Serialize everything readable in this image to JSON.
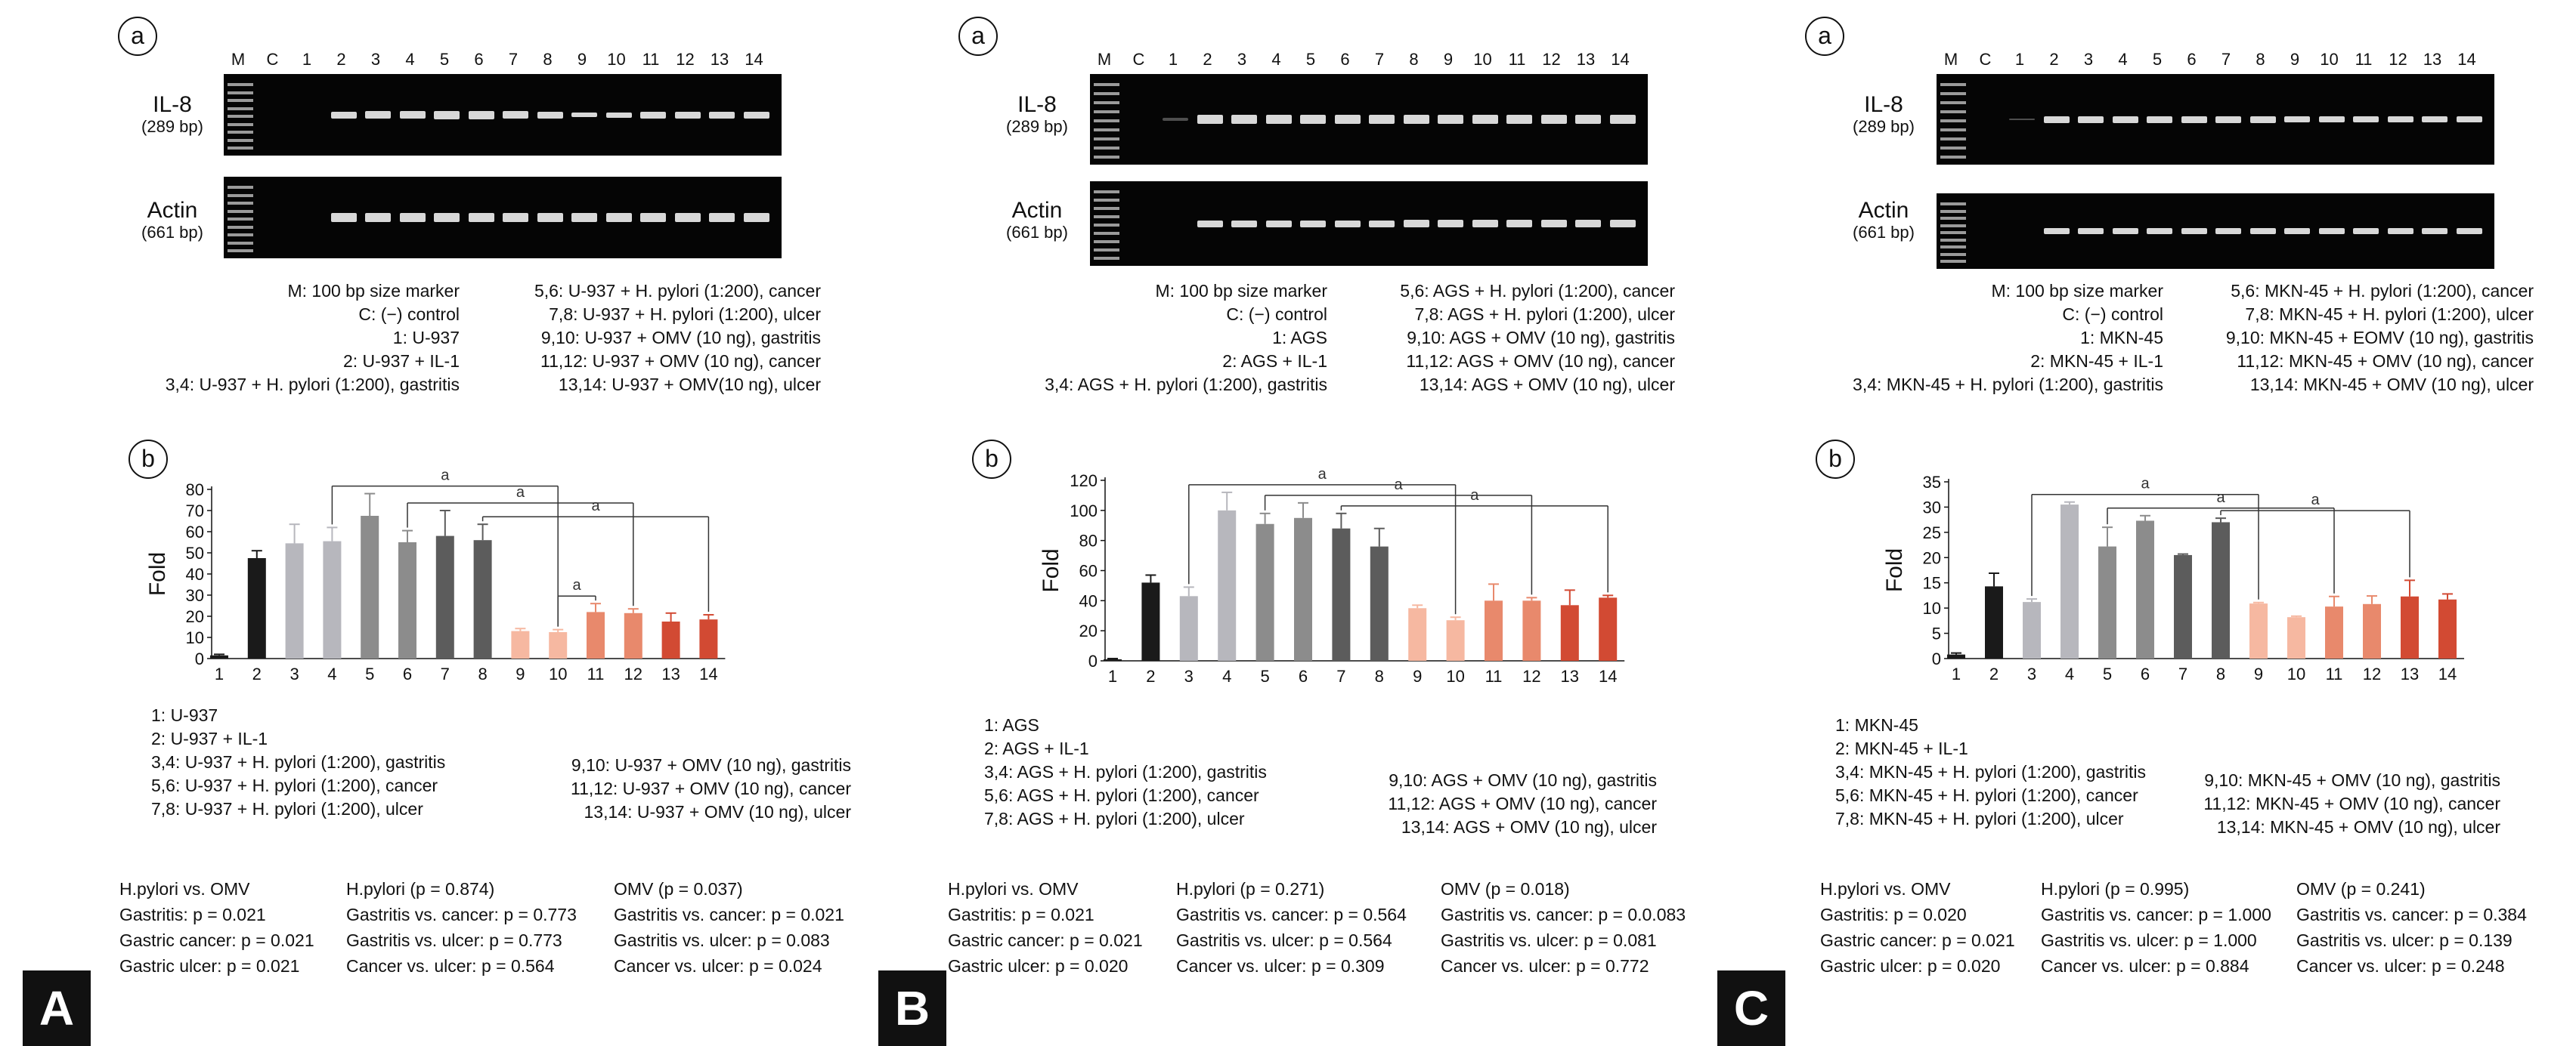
{
  "panels": [
    {
      "letter": "A",
      "gel": {
        "circle_label": "a",
        "lane_labels": [
          "M",
          "C",
          "1",
          "2",
          "3",
          "4",
          "5",
          "6",
          "7",
          "8",
          "9",
          "10",
          "11",
          "12",
          "13",
          "14"
        ],
        "il8_label": "IL-8",
        "il8_bp": "(289 bp)",
        "actin_label": "Actin",
        "actin_bp": "(661 bp)",
        "legend_left": [
          "M: 100 bp size marker",
          "C: (−) control",
          "1: U-937",
          "2: U-937 + IL-1",
          "3,4: U-937 + H. pylori (1:200), gastritis"
        ],
        "legend_right": [
          "5,6: U-937 + H. pylori (1:200), cancer",
          "7,8: U-937 + H. pylori (1:200), ulcer",
          "9,10: U-937 + OMV (10 ng), gastritis",
          "11,12: U-937 + OMV (10 ng), cancer",
          "13,14: U-937 + OMV(10 ng), ulcer"
        ]
      },
      "bar_legend_left": [
        "1: U-937",
        "2: U-937 + IL-1",
        "3,4: U-937 + H. pylori (1:200), gastritis",
        "5,6: U-937 + H. pylori (1:200), cancer",
        "7,8: U-937 + H. pylori (1:200), ulcer"
      ],
      "bar_legend_right": [
        "9,10: U-937 + OMV (10 ng), gastritis",
        "11,12: U-937 + OMV (10 ng), cancer",
        "13,14: U-937 + OMV (10 ng), ulcer"
      ],
      "stats": {
        "col1": [
          "H.pylori vs. OMV",
          "Gastritis: p = 0.021",
          "Gastric cancer: p = 0.021",
          "Gastric ulcer: p = 0.021"
        ],
        "col2": [
          "H.pylori (p = 0.874)",
          "Gastritis vs. cancer: p = 0.773",
          "Gastritis vs. ulcer: p = 0.773",
          "Cancer vs. ulcer: p = 0.564"
        ],
        "col3": [
          "OMV (p = 0.037)",
          "Gastritis vs. cancer: p = 0.021",
          "Gastritis vs. ulcer: p = 0.083",
          "Cancer vs. ulcer: p = 0.024"
        ]
      }
    },
    {
      "letter": "B",
      "gel": {
        "circle_label": "a",
        "lane_labels": [
          "M",
          "C",
          "1",
          "2",
          "3",
          "4",
          "5",
          "6",
          "7",
          "8",
          "9",
          "10",
          "11",
          "12",
          "13",
          "14"
        ],
        "il8_label": "IL-8",
        "il8_bp": "(289 bp)",
        "actin_label": "Actin",
        "actin_bp": "(661 bp)",
        "legend_left": [
          "M: 100 bp size marker",
          "C: (−) control",
          "1: AGS",
          "2: AGS + IL-1",
          "3,4: AGS + H. pylori (1:200), gastritis"
        ],
        "legend_right": [
          "5,6: AGS + H. pylori (1:200), cancer",
          "7,8: AGS + H. pylori (1:200), ulcer",
          "9,10: AGS + OMV (10 ng), gastritis",
          "11,12: AGS + OMV (10 ng), cancer",
          "13,14: AGS + OMV (10 ng), ulcer"
        ]
      },
      "bar_legend_left": [
        "1: AGS",
        "2: AGS + IL-1",
        "3,4: AGS + H. pylori (1:200), gastritis",
        "5,6: AGS + H. pylori (1:200), cancer",
        "7,8: AGS + H. pylori (1:200), ulcer"
      ],
      "bar_legend_right": [
        "9,10: AGS + OMV (10 ng), gastritis",
        "11,12: AGS + OMV (10 ng), cancer",
        "13,14: AGS + OMV (10 ng), ulcer"
      ],
      "stats": {
        "col1": [
          "H.pylori vs. OMV",
          "Gastritis: p = 0.021",
          "Gastric cancer: p = 0.021",
          "Gastric ulcer: p = 0.020"
        ],
        "col2": [
          "H.pylori (p = 0.271)",
          "Gastritis vs. cancer: p = 0.564",
          "Gastritis vs. ulcer: p = 0.564",
          "Cancer vs. ulcer: p = 0.309"
        ],
        "col3": [
          "OMV (p = 0.018)",
          "Gastritis vs. cancer: p = 0.0.083",
          "Gastritis vs. ulcer: p = 0.081",
          "Cancer vs. ulcer: p = 0.772"
        ]
      }
    },
    {
      "letter": "C",
      "gel": {
        "circle_label": "a",
        "lane_labels": [
          "M",
          "C",
          "1",
          "2",
          "3",
          "4",
          "5",
          "6",
          "7",
          "8",
          "9",
          "10",
          "11",
          "12",
          "13",
          "14"
        ],
        "il8_label": "IL-8",
        "il8_bp": "(289 bp)",
        "actin_label": "Actin",
        "actin_bp": "(661 bp)",
        "legend_left": [
          "M: 100 bp size marker",
          "C: (−) control",
          "1: MKN-45",
          "2: MKN-45 + IL-1",
          "3,4: MKN-45 + H. pylori (1:200), gastritis"
        ],
        "legend_right": [
          "5,6: MKN-45 + H. pylori (1:200), cancer",
          "7,8: MKN-45 + H. pylori (1:200), ulcer",
          "9,10: MKN-45 + EOMV (10 ng), gastritis",
          "11,12: MKN-45 + OMV (10 ng), cancer",
          "13,14: MKN-45 + OMV (10 ng), ulcer"
        ]
      },
      "bar_legend_left": [
        "1: MKN-45",
        "2: MKN-45 + IL-1",
        "3,4: MKN-45 + H. pylori (1:200), gastritis",
        "5,6: MKN-45 + H. pylori (1:200), cancer",
        "7,8: MKN-45 + H. pylori (1:200), ulcer"
      ],
      "bar_legend_right": [
        "9,10: MKN-45 + OMV (10 ng), gastritis",
        "11,12: MKN-45 + OMV (10 ng), cancer",
        "13,14: MKN-45 + OMV (10 ng), ulcer"
      ],
      "stats": {
        "col1": [
          "H.pylori vs. OMV",
          "Gastritis: p = 0.020",
          "Gastric cancer: p = 0.021",
          "Gastric ulcer: p = 0.020"
        ],
        "col2": [
          "H.pylori (p = 0.995)",
          "Gastritis vs. cancer: p = 1.000",
          "Gastritis vs. ulcer: p = 1.000",
          "Cancer vs. ulcer: p = 0.884"
        ],
        "col3": [
          "OMV (p = 0.241)",
          "Gastritis vs. cancer: p = 0.384",
          "Gastritis vs. ulcer: p = 0.139",
          "Cancer vs. ulcer: p = 0.248"
        ]
      }
    }
  ],
  "bar_colors": [
    "#1a1a1a",
    "#1a1a1a",
    "#b7b7bd",
    "#b7b7bd",
    "#8c8c8c",
    "#8c8c8c",
    "#5c5c5c",
    "#5c5c5c",
    "#f6b8a1",
    "#f6b8a1",
    "#e8896c",
    "#e8896c",
    "#d24a33",
    "#d24a33"
  ],
  "chart_data": [
    {
      "type": "bar",
      "panel": "A",
      "circle_label": "b",
      "categories": [
        "1",
        "2",
        "3",
        "4",
        "5",
        "6",
        "7",
        "8",
        "9",
        "10",
        "11",
        "12",
        "13",
        "14"
      ],
      "values": [
        1.5,
        47.5,
        54.5,
        55.5,
        67.5,
        55.0,
        58.0,
        56.0,
        13.0,
        12.5,
        22.0,
        21.5,
        17.5,
        18.5
      ],
      "errors": [
        0.5,
        3.5,
        9.0,
        6.5,
        10.5,
        5.5,
        12.0,
        7.5,
        1.2,
        1.2,
        4.0,
        2.0,
        4.0,
        2.2
      ],
      "ylabel": "Fold",
      "ylim": [
        0,
        80
      ],
      "yticks": [
        0,
        10,
        20,
        30,
        40,
        50,
        60,
        70,
        80
      ],
      "significance": [
        {
          "from": 4,
          "to": 10,
          "label": "a"
        },
        {
          "from": 6,
          "to": 12,
          "label": "a"
        },
        {
          "from": 8,
          "to": 14,
          "label": "a"
        },
        {
          "from": 10,
          "to": 11,
          "label": "a"
        }
      ]
    },
    {
      "type": "bar",
      "panel": "B",
      "circle_label": "b",
      "categories": [
        "1",
        "2",
        "3",
        "4",
        "5",
        "6",
        "7",
        "8",
        "9",
        "10",
        "11",
        "12",
        "13",
        "14"
      ],
      "values": [
        1,
        52,
        43,
        100,
        91,
        95,
        88,
        76,
        35,
        27,
        40,
        40,
        37,
        42
      ],
      "errors": [
        0.5,
        5,
        6,
        12,
        7,
        10,
        10,
        12,
        2,
        2,
        11,
        2,
        10,
        1.5
      ],
      "ylabel": "Fold",
      "ylim": [
        0,
        120
      ],
      "yticks": [
        0,
        20,
        40,
        60,
        80,
        100,
        120
      ],
      "significance": [
        {
          "from": 3,
          "to": 10,
          "label": "a"
        },
        {
          "from": 5,
          "to": 12,
          "label": "a"
        },
        {
          "from": 7,
          "to": 14,
          "label": "a"
        }
      ]
    },
    {
      "type": "bar",
      "panel": "C",
      "circle_label": "b",
      "categories": [
        "1",
        "2",
        "3",
        "4",
        "5",
        "6",
        "7",
        "8",
        "9",
        "10",
        "11",
        "12",
        "13",
        "14"
      ],
      "values": [
        0.8,
        14.3,
        11.2,
        30.5,
        22.2,
        27.3,
        20.5,
        27.0,
        10.9,
        8.2,
        10.3,
        10.8,
        12.3,
        11.7
      ],
      "errors": [
        0.3,
        2.6,
        0.6,
        0.5,
        3.8,
        1.0,
        0.2,
        0.8,
        0.2,
        0.2,
        2.0,
        1.6,
        3.2,
        1.1
      ],
      "ylabel": "Fold",
      "ylim": [
        0,
        35
      ],
      "yticks": [
        0,
        5,
        10,
        15,
        20,
        25,
        30,
        35
      ],
      "significance": [
        {
          "from": 3,
          "to": 9,
          "label": "a"
        },
        {
          "from": 5,
          "to": 11,
          "label": "a"
        },
        {
          "from": 8,
          "to": 13,
          "label": "a"
        }
      ]
    }
  ]
}
